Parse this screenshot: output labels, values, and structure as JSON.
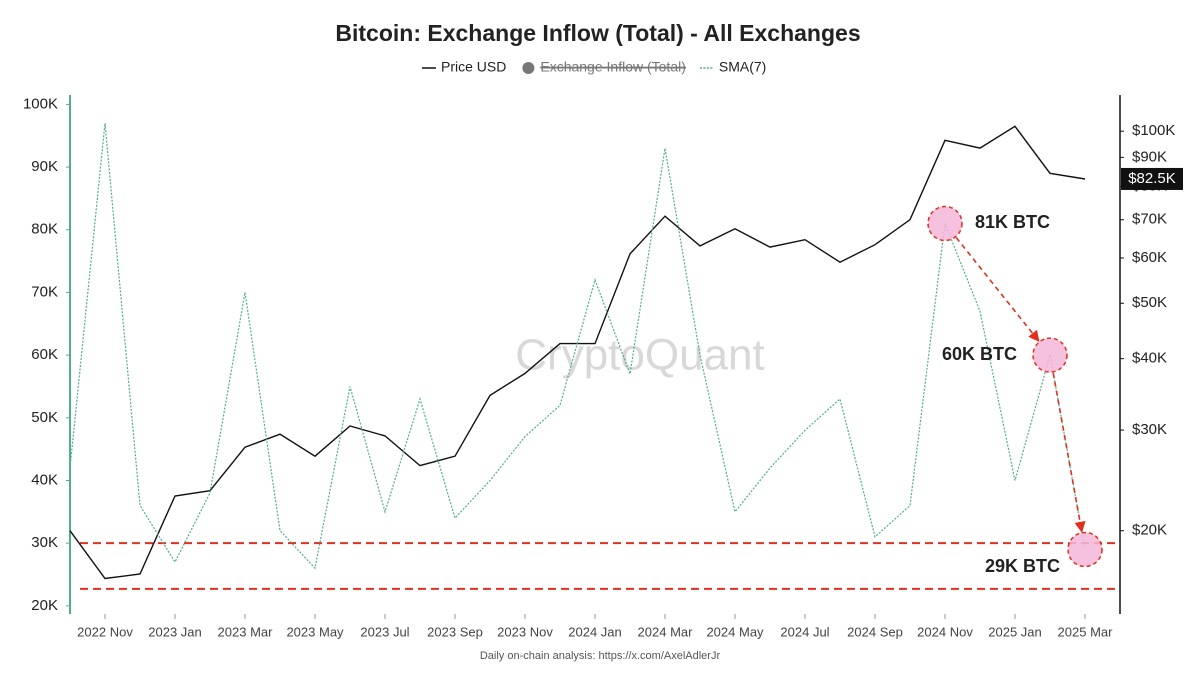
{
  "chart_data": {
    "type": "line",
    "title": "Bitcoin: Exchange Inflow (Total) - All Exchanges",
    "watermark": "CryptoQuant",
    "footer": "Daily on-chain analysis: https://x.com/AxelAdlerJr",
    "x": [
      "2022-10",
      "2022-11",
      "2022-12",
      "2023-01",
      "2023-02",
      "2023-03",
      "2023-04",
      "2023-05",
      "2023-06",
      "2023-07",
      "2023-08",
      "2023-09",
      "2023-10",
      "2023-11",
      "2023-12",
      "2024-01",
      "2024-02",
      "2024-03",
      "2024-04",
      "2024-05",
      "2024-06",
      "2024-07",
      "2024-08",
      "2024-09",
      "2024-10",
      "2024-11",
      "2024-12",
      "2025-01",
      "2025-02",
      "2025-03"
    ],
    "xlim": [
      "2022-10",
      "2025-04"
    ],
    "xticks": [
      {
        "value": "2022-11",
        "label": "2022 Nov"
      },
      {
        "value": "2023-01",
        "label": "2023 Jan"
      },
      {
        "value": "2023-03",
        "label": "2023 Mar"
      },
      {
        "value": "2023-05",
        "label": "2023 May"
      },
      {
        "value": "2023-07",
        "label": "2023 Jul"
      },
      {
        "value": "2023-09",
        "label": "2023 Sep"
      },
      {
        "value": "2023-11",
        "label": "2023 Nov"
      },
      {
        "value": "2024-01",
        "label": "2024 Jan"
      },
      {
        "value": "2024-03",
        "label": "2024 Mar"
      },
      {
        "value": "2024-05",
        "label": "2024 May"
      },
      {
        "value": "2024-07",
        "label": "2024 Jul"
      },
      {
        "value": "2024-09",
        "label": "2024 Sep"
      },
      {
        "value": "2024-11",
        "label": "2024 Nov"
      },
      {
        "value": "2025-01",
        "label": "2025 Jan"
      },
      {
        "value": "2025-03",
        "label": "2025 Mar"
      }
    ],
    "ylim": [
      18700,
      101500
    ],
    "yticks": [
      {
        "value": 20000,
        "label": "20K"
      },
      {
        "value": 30000,
        "label": "30K"
      },
      {
        "value": 40000,
        "label": "40K"
      },
      {
        "value": 50000,
        "label": "50K"
      },
      {
        "value": 60000,
        "label": "60K"
      },
      {
        "value": 70000,
        "label": "70K"
      },
      {
        "value": 80000,
        "label": "80K"
      },
      {
        "value": 90000,
        "label": "90K"
      },
      {
        "value": 100000,
        "label": "100K"
      }
    ],
    "y2_log": true,
    "y2lim": [
      14300,
      115700
    ],
    "y2ticks": [
      {
        "value": 20000,
        "label": "$20K"
      },
      {
        "value": 30000,
        "label": "$30K"
      },
      {
        "value": 40000,
        "label": "$40K"
      },
      {
        "value": 50000,
        "label": "$50K"
      },
      {
        "value": 60000,
        "label": "$60K"
      },
      {
        "value": 70000,
        "label": "$70K"
      },
      {
        "value": 80000,
        "label": "$80K"
      },
      {
        "value": 90000,
        "label": "$90K"
      },
      {
        "value": 100000,
        "label": "$100K"
      }
    ],
    "series": [
      {
        "name": "Price USD",
        "color": "#111111",
        "axis": "y2",
        "values": [
          20000,
          16500,
          16800,
          23000,
          23500,
          28000,
          29500,
          27000,
          30500,
          29300,
          26000,
          27000,
          34500,
          37700,
          42500,
          42500,
          61000,
          71000,
          63000,
          67500,
          62700,
          64600,
          59000,
          63300,
          70000,
          96400,
          93400,
          102000,
          84400,
          82500
        ]
      },
      {
        "name": "SMA(7)",
        "color": "#4fae8c",
        "axis": "y",
        "values": [
          42000,
          97000,
          36000,
          27000,
          38000,
          70000,
          32000,
          26000,
          55000,
          35000,
          53000,
          34000,
          40000,
          47000,
          52000,
          72000,
          57000,
          93000,
          60000,
          35000,
          42000,
          48000,
          53000,
          31000,
          36000,
          81000,
          67000,
          40000,
          60000,
          29000
        ]
      }
    ],
    "hidden_series": [
      {
        "name": "Exchange Inflow (Total)",
        "color": "#777777"
      }
    ],
    "last_price_label": "$82.5K",
    "reference_lines": [
      {
        "value": 30000,
        "color": "#e0301e"
      },
      {
        "value": 22700,
        "color": "#e0301e"
      }
    ],
    "annotations": [
      {
        "label": "81K BTC",
        "x": "2024-11",
        "value": 81000
      },
      {
        "label": "60K BTC",
        "x": "2025-02",
        "value": 60000
      },
      {
        "label": "29K BTC",
        "x": "2025-03",
        "value": 29000
      }
    ],
    "grid": false
  }
}
